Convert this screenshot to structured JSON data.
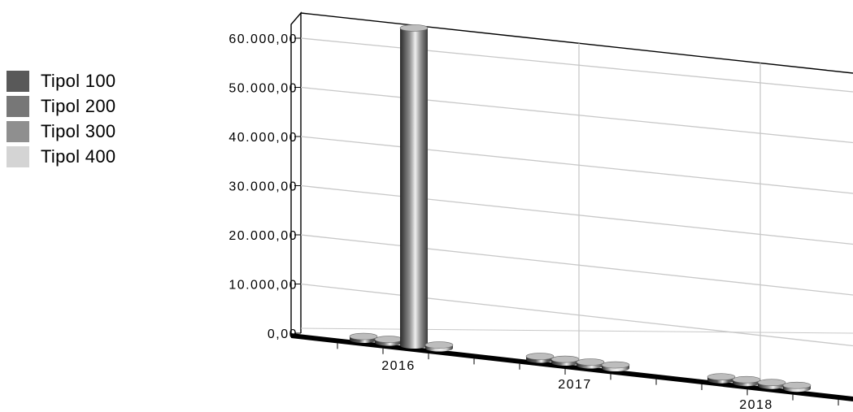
{
  "chart_data": {
    "type": "bar",
    "title": "",
    "xlabel": "",
    "ylabel": "",
    "categories": [
      "2016",
      "2017",
      "2018"
    ],
    "series": [
      {
        "name": "Tipol 100",
        "color": "#595959",
        "values": [
          0,
          0,
          0
        ]
      },
      {
        "name": "Tipol 200",
        "color": "#777777",
        "values": [
          0,
          0,
          0
        ]
      },
      {
        "name": "Tipol 300",
        "color": "#8f8f8f",
        "values": [
          62000,
          0,
          0
        ]
      },
      {
        "name": "Tipol 400",
        "color": "#d4d4d4",
        "values": [
          0,
          0,
          0
        ]
      }
    ],
    "ylim": [
      0,
      60000
    ],
    "yticks": [
      0,
      10000,
      20000,
      30000,
      40000,
      50000,
      60000
    ],
    "ytick_labels": [
      "0,00",
      "10.000,00",
      "20.000,00",
      "30.000,00",
      "40.000,00",
      "50.000,00",
      "60.000,00"
    ],
    "grid": true,
    "legend_position": "left",
    "style": "3d-cylinder"
  }
}
